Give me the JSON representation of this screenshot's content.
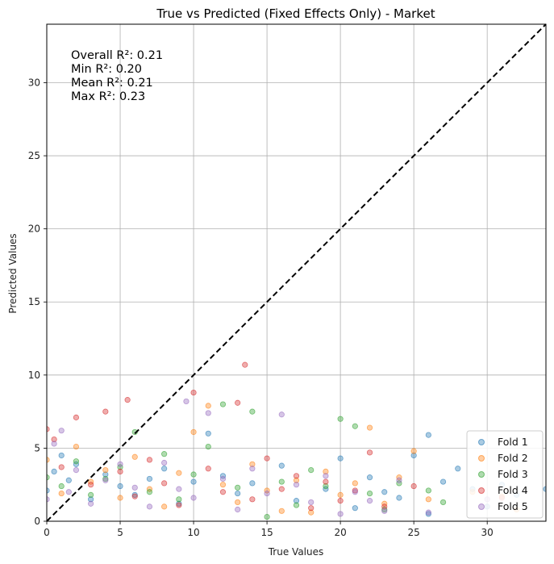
{
  "chart_data": {
    "type": "scatter",
    "title": "True vs Predicted (Fixed Effects Only) - Market",
    "xlabel": "True Values",
    "ylabel": "Predicted Values",
    "xlim": [
      0,
      34
    ],
    "ylim": [
      0,
      34
    ],
    "xticks": [
      0,
      5,
      10,
      15,
      20,
      25,
      30
    ],
    "yticks": [
      0,
      5,
      10,
      15,
      20,
      25,
      30
    ],
    "grid": true,
    "legend_position": "bottom-right",
    "annotations": [
      "Overall R²: 0.21",
      "Min R²: 0.20",
      "Mean R²: 0.21",
      "Max R²: 0.23"
    ],
    "reference_line": {
      "label": "",
      "style": "dashed",
      "color": "#000000",
      "points": [
        [
          0,
          0
        ],
        [
          34,
          34
        ]
      ]
    },
    "series": [
      {
        "name": "Fold 1",
        "color": "#1f77b4",
        "points": [
          [
            0,
            2.1
          ],
          [
            0.5,
            3.4
          ],
          [
            1,
            4.5
          ],
          [
            1.5,
            2.8
          ],
          [
            2,
            3.9
          ],
          [
            3,
            1.5
          ],
          [
            4,
            3.2
          ],
          [
            5,
            2.4
          ],
          [
            6,
            1.8
          ],
          [
            7,
            2.9
          ],
          [
            8,
            3.6
          ],
          [
            9,
            1.2
          ],
          [
            10,
            2.7
          ],
          [
            11,
            6.0
          ],
          [
            12,
            3.1
          ],
          [
            13,
            1.9
          ],
          [
            14,
            2.6
          ],
          [
            16,
            3.8
          ],
          [
            17,
            1.4
          ],
          [
            19,
            2.2
          ],
          [
            20,
            4.3
          ],
          [
            21,
            0.9
          ],
          [
            22,
            3.0
          ],
          [
            23,
            2.0
          ],
          [
            24,
            1.6
          ],
          [
            25,
            4.5
          ],
          [
            26,
            5.9
          ],
          [
            26,
            0.5
          ],
          [
            27,
            2.7
          ],
          [
            28,
            3.6
          ],
          [
            29,
            2.2
          ],
          [
            30,
            1.0
          ],
          [
            31,
            2.5
          ],
          [
            32,
            1.8
          ],
          [
            34,
            2.2
          ]
        ]
      },
      {
        "name": "Fold 2",
        "color": "#ff7f0e",
        "points": [
          [
            0,
            4.2
          ],
          [
            1,
            1.9
          ],
          [
            2,
            5.1
          ],
          [
            3,
            2.7
          ],
          [
            4,
            3.5
          ],
          [
            5,
            1.6
          ],
          [
            6,
            4.4
          ],
          [
            7,
            2.2
          ],
          [
            8,
            1.0
          ],
          [
            9,
            3.3
          ],
          [
            10,
            6.1
          ],
          [
            11,
            7.9
          ],
          [
            12,
            2.5
          ],
          [
            13,
            1.3
          ],
          [
            14,
            3.9
          ],
          [
            15,
            2.1
          ],
          [
            16,
            0.7
          ],
          [
            17,
            2.8
          ],
          [
            18,
            0.6
          ],
          [
            19,
            3.4
          ],
          [
            20,
            1.8
          ],
          [
            21,
            2.6
          ],
          [
            22,
            6.4
          ],
          [
            23,
            1.2
          ],
          [
            24,
            3.0
          ],
          [
            25,
            4.8
          ],
          [
            26,
            1.5
          ],
          [
            29,
            2.0
          ],
          [
            31,
            1.7
          ],
          [
            32,
            0.8
          ]
        ]
      },
      {
        "name": "Fold 3",
        "color": "#2ca02c",
        "points": [
          [
            0,
            3.0
          ],
          [
            1,
            2.4
          ],
          [
            2,
            4.1
          ],
          [
            3,
            1.8
          ],
          [
            4,
            2.9
          ],
          [
            5,
            3.7
          ],
          [
            6,
            6.1
          ],
          [
            7,
            2.0
          ],
          [
            8,
            4.6
          ],
          [
            9,
            1.5
          ],
          [
            10,
            3.2
          ],
          [
            11,
            5.1
          ],
          [
            12,
            8.0
          ],
          [
            13,
            2.3
          ],
          [
            14,
            7.5
          ],
          [
            15,
            0.3
          ],
          [
            16,
            2.7
          ],
          [
            17,
            1.1
          ],
          [
            18,
            3.5
          ],
          [
            19,
            2.4
          ],
          [
            20,
            7.0
          ],
          [
            21,
            6.5
          ],
          [
            22,
            1.9
          ],
          [
            23,
            0.8
          ],
          [
            24,
            2.6
          ],
          [
            26,
            2.1
          ],
          [
            27,
            1.3
          ]
        ]
      },
      {
        "name": "Fold 4",
        "color": "#d62728",
        "points": [
          [
            0,
            6.3
          ],
          [
            0.5,
            5.6
          ],
          [
            1,
            3.7
          ],
          [
            2,
            7.1
          ],
          [
            3,
            2.5
          ],
          [
            4,
            7.5
          ],
          [
            5,
            3.4
          ],
          [
            5.5,
            8.3
          ],
          [
            6,
            1.7
          ],
          [
            7,
            4.2
          ],
          [
            8,
            2.6
          ],
          [
            9,
            1.1
          ],
          [
            10,
            8.8
          ],
          [
            11,
            3.6
          ],
          [
            12,
            2.0
          ],
          [
            13,
            8.1
          ],
          [
            13.5,
            10.7
          ],
          [
            14,
            1.5
          ],
          [
            15,
            4.3
          ],
          [
            16,
            2.2
          ],
          [
            17,
            3.1
          ],
          [
            18,
            0.9
          ],
          [
            19,
            2.7
          ],
          [
            20,
            1.4
          ],
          [
            21,
            2.1
          ],
          [
            22,
            4.7
          ],
          [
            23,
            1.0
          ],
          [
            25,
            2.4
          ],
          [
            31,
            1.6
          ]
        ]
      },
      {
        "name": "Fold 5",
        "color": "#9467bd",
        "points": [
          [
            0,
            1.5
          ],
          [
            0.5,
            5.3
          ],
          [
            1,
            6.2
          ],
          [
            1.5,
            2.0
          ],
          [
            2,
            3.5
          ],
          [
            3,
            1.2
          ],
          [
            4,
            2.8
          ],
          [
            5,
            3.9
          ],
          [
            6,
            2.3
          ],
          [
            7,
            1.0
          ],
          [
            8,
            4.0
          ],
          [
            9,
            2.2
          ],
          [
            9.5,
            8.2
          ],
          [
            10,
            1.6
          ],
          [
            11,
            7.4
          ],
          [
            12,
            2.9
          ],
          [
            13,
            0.8
          ],
          [
            14,
            3.6
          ],
          [
            15,
            1.9
          ],
          [
            16,
            7.3
          ],
          [
            17,
            2.5
          ],
          [
            18,
            1.3
          ],
          [
            19,
            3.1
          ],
          [
            20,
            0.5
          ],
          [
            21,
            2.0
          ],
          [
            22,
            1.4
          ],
          [
            23,
            0.7
          ],
          [
            24,
            2.8
          ],
          [
            26,
            0.6
          ],
          [
            30,
            1.5
          ]
        ]
      }
    ]
  }
}
